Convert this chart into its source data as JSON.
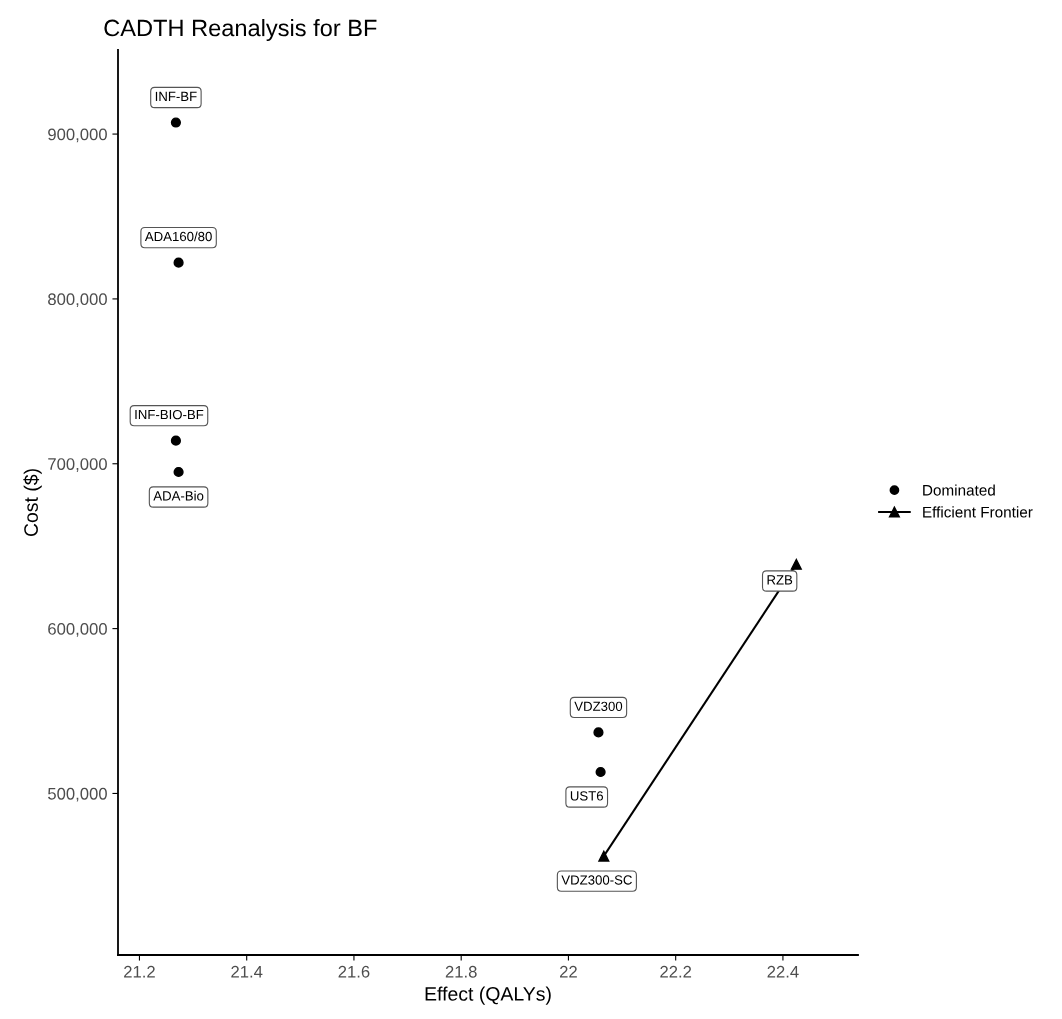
{
  "chart_data": {
    "type": "scatter",
    "title": "CADTH Reanalysis for BF",
    "xlabel": "Effect (QALYs)",
    "ylabel": "Cost ($)",
    "series": [
      {
        "name": "Dominated",
        "marker": "circle",
        "color": "#000000",
        "x": [
          21.268,
          21.273,
          21.268,
          21.273,
          22.056,
          22.06
        ],
        "values": [
          907000,
          822000,
          714000,
          695000,
          537000,
          513000
        ]
      },
      {
        "name": "Efficient Frontier",
        "type": "line",
        "marker": "triangle",
        "line_style": "solid",
        "color": "#000000",
        "x": [
          22.066,
          22.425
        ],
        "values": [
          462000,
          639000
        ]
      }
    ],
    "annotations": [
      {
        "text": "INF-BF",
        "x": 21.268,
        "y": 907000
      },
      {
        "text": "ADA160/80",
        "x": 21.273,
        "y": 822000
      },
      {
        "text": "INF-BIO-BF",
        "x": 21.268,
        "y": 714000
      },
      {
        "text": "ADA-Bio",
        "x": 21.273,
        "y": 695000
      },
      {
        "text": "VDZ300",
        "x": 22.056,
        "y": 537000
      },
      {
        "text": "UST6",
        "x": 22.06,
        "y": 513000
      },
      {
        "text": "VDZ300-SC",
        "x": 22.066,
        "y": 462000
      },
      {
        "text": "RZB",
        "x": 22.425,
        "y": 639000
      }
    ],
    "xlim": [
      21.16,
      22.54
    ],
    "xticks": [
      21.2,
      21.4,
      21.6,
      21.8,
      {
        "value": 22.0,
        "label": "22"
      },
      22.2,
      22.4
    ],
    "ylim": [
      402000,
      951000
    ],
    "yticks": [
      {
        "value": 500000,
        "label": "500,000"
      },
      {
        "value": 600000,
        "label": "600,000"
      },
      {
        "value": 700000,
        "label": "700,000"
      },
      {
        "value": 800000,
        "label": "800,000"
      },
      {
        "value": 900000,
        "label": "900,000"
      }
    ],
    "grid": false,
    "legend": "right"
  }
}
